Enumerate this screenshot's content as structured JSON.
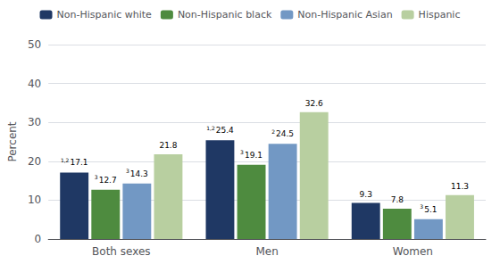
{
  "chart_data": {
    "type": "bar",
    "categories": [
      "Both sexes",
      "Men",
      "Women"
    ],
    "series": [
      {
        "name": "Non-Hispanic white",
        "color": "#1F3864",
        "values": [
          17.1,
          25.4,
          9.3
        ],
        "superscripts": [
          "1,2",
          "1,2",
          null
        ]
      },
      {
        "name": "Non-Hispanic black",
        "color": "#4E8B3F",
        "values": [
          12.7,
          19.1,
          7.8
        ],
        "superscripts": [
          "3",
          "3",
          null
        ]
      },
      {
        "name": "Non-Hispanic Asian",
        "color": "#7298C4",
        "values": [
          14.3,
          24.5,
          5.1
        ],
        "superscripts": [
          "3",
          "2",
          "3"
        ]
      },
      {
        "name": "Hispanic",
        "color": "#B8CFA0",
        "values": [
          21.8,
          32.6,
          11.3
        ],
        "superscripts": [
          null,
          null,
          null
        ]
      }
    ],
    "ylabel": "Percent",
    "ylim": [
      0,
      50
    ],
    "yticks": [
      0,
      10,
      20,
      30,
      40,
      50
    ],
    "grid": true,
    "legend": "top",
    "data_labels": true
  }
}
